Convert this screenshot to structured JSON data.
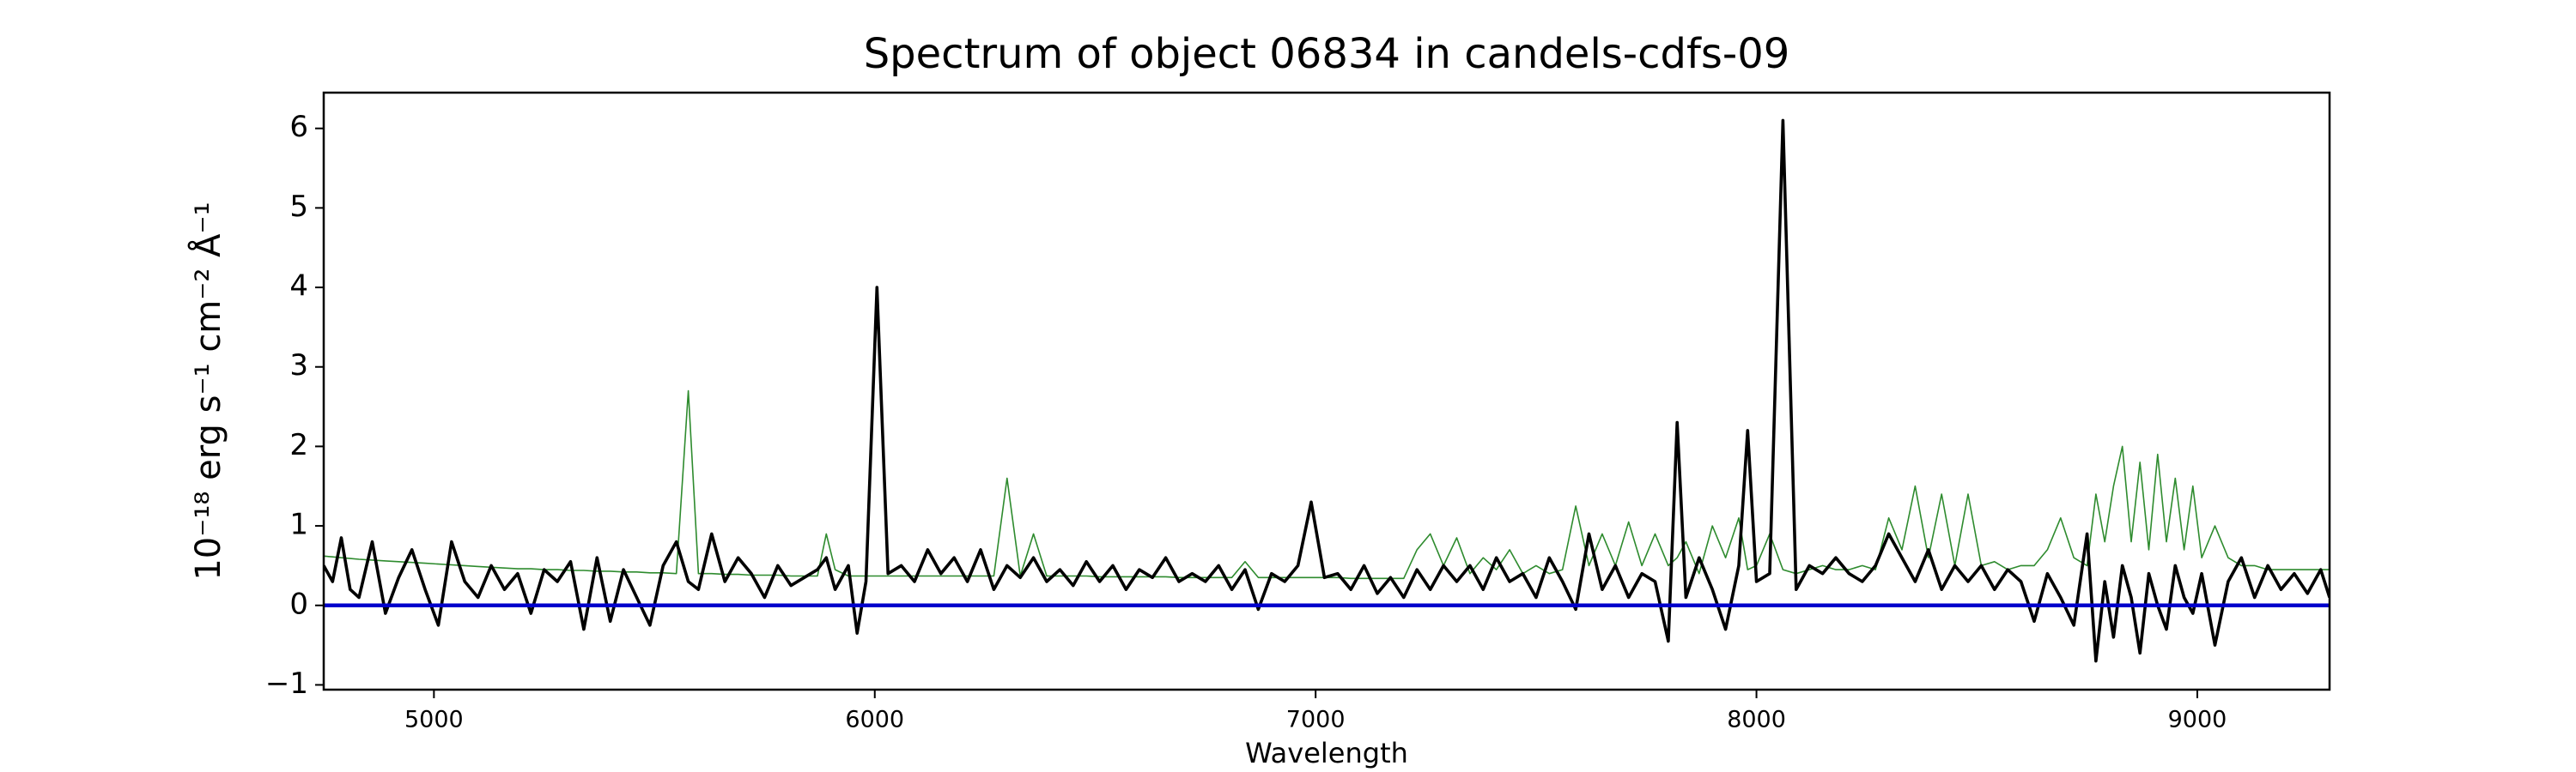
{
  "chart_data": {
    "type": "line",
    "title": "Spectrum of object 06834 in candels-cdfs-09",
    "xlabel": "Wavelength",
    "ylabel": "10⁻¹⁸ erg s⁻¹ cm⁻² Å⁻¹",
    "xlim": [
      4750,
      9300
    ],
    "ylim": [
      -1.06,
      6.45
    ],
    "xticks": [
      5000,
      6000,
      7000,
      8000,
      9000
    ],
    "yticks": [
      {
        "value": -1,
        "label": "−1"
      },
      0,
      1,
      2,
      3,
      4,
      5,
      6
    ],
    "x": [
      4750,
      4770,
      4790,
      4810,
      4830,
      4860,
      4890,
      4920,
      4950,
      4980,
      5010,
      5040,
      5070,
      5100,
      5130,
      5160,
      5190,
      5220,
      5250,
      5280,
      5310,
      5340,
      5370,
      5400,
      5430,
      5460,
      5490,
      5520,
      5550,
      5577,
      5600,
      5630,
      5660,
      5690,
      5720,
      5750,
      5780,
      5810,
      5840,
      5870,
      5890,
      5910,
      5940,
      5960,
      5980,
      6005,
      6030,
      6060,
      6090,
      6120,
      6150,
      6180,
      6210,
      6240,
      6270,
      6300,
      6330,
      6360,
      6390,
      6420,
      6450,
      6480,
      6510,
      6540,
      6570,
      6600,
      6630,
      6660,
      6690,
      6720,
      6750,
      6780,
      6810,
      6840,
      6870,
      6900,
      6930,
      6960,
      6990,
      7020,
      7050,
      7080,
      7110,
      7140,
      7170,
      7200,
      7230,
      7260,
      7290,
      7320,
      7350,
      7380,
      7410,
      7440,
      7470,
      7500,
      7530,
      7560,
      7590,
      7620,
      7650,
      7680,
      7710,
      7740,
      7770,
      7800,
      7820,
      7840,
      7870,
      7900,
      7930,
      7960,
      7980,
      8000,
      8030,
      8060,
      8090,
      8120,
      8150,
      8180,
      8210,
      8240,
      8270,
      8300,
      8330,
      8360,
      8390,
      8420,
      8450,
      8480,
      8510,
      8540,
      8570,
      8600,
      8630,
      8660,
      8690,
      8720,
      8750,
      8770,
      8790,
      8810,
      8830,
      8850,
      8870,
      8890,
      8910,
      8930,
      8950,
      8970,
      8990,
      9010,
      9040,
      9070,
      9100,
      9130,
      9160,
      9190,
      9220,
      9250,
      9280,
      9300
    ],
    "series": [
      {
        "color": "#2e8b2e",
        "values": [
          0.62,
          0.61,
          0.6,
          0.59,
          0.58,
          0.57,
          0.56,
          0.55,
          0.54,
          0.53,
          0.52,
          0.51,
          0.5,
          0.49,
          0.48,
          0.47,
          0.46,
          0.46,
          0.45,
          0.45,
          0.44,
          0.44,
          0.43,
          0.43,
          0.42,
          0.42,
          0.41,
          0.41,
          0.4,
          2.7,
          0.4,
          0.4,
          0.39,
          0.39,
          0.38,
          0.38,
          0.38,
          0.37,
          0.37,
          0.37,
          0.9,
          0.45,
          0.37,
          0.37,
          0.37,
          0.37,
          0.37,
          0.37,
          0.37,
          0.37,
          0.37,
          0.37,
          0.37,
          0.37,
          0.37,
          1.6,
          0.37,
          0.9,
          0.37,
          0.37,
          0.37,
          0.37,
          0.36,
          0.36,
          0.36,
          0.36,
          0.36,
          0.36,
          0.35,
          0.35,
          0.35,
          0.35,
          0.35,
          0.55,
          0.35,
          0.35,
          0.35,
          0.35,
          0.35,
          0.35,
          0.35,
          0.34,
          0.34,
          0.34,
          0.34,
          0.34,
          0.7,
          0.9,
          0.5,
          0.85,
          0.4,
          0.6,
          0.45,
          0.7,
          0.4,
          0.5,
          0.4,
          0.45,
          1.25,
          0.5,
          0.9,
          0.5,
          1.05,
          0.5,
          0.9,
          0.5,
          0.6,
          0.8,
          0.4,
          1.0,
          0.6,
          1.1,
          0.45,
          0.5,
          0.9,
          0.45,
          0.4,
          0.45,
          0.5,
          0.45,
          0.45,
          0.5,
          0.45,
          1.1,
          0.7,
          1.5,
          0.6,
          1.4,
          0.5,
          1.4,
          0.5,
          0.55,
          0.45,
          0.5,
          0.5,
          0.7,
          1.1,
          0.6,
          0.5,
          1.4,
          0.8,
          1.5,
          2.0,
          0.8,
          1.8,
          0.7,
          1.9,
          0.8,
          1.6,
          0.7,
          1.5,
          0.6,
          1.0,
          0.6,
          0.5,
          0.5,
          0.45,
          0.45,
          0.45,
          0.45,
          0.45,
          0.45
        ]
      },
      {
        "color": "#000000",
        "values": [
          0.5,
          0.3,
          0.85,
          0.2,
          0.1,
          0.8,
          -0.1,
          0.35,
          0.7,
          0.2,
          -0.25,
          0.8,
          0.3,
          0.1,
          0.5,
          0.2,
          0.4,
          -0.1,
          0.45,
          0.3,
          0.55,
          -0.3,
          0.6,
          -0.2,
          0.45,
          0.1,
          -0.25,
          0.5,
          0.8,
          0.3,
          0.2,
          0.9,
          0.3,
          0.6,
          0.4,
          0.1,
          0.5,
          0.25,
          0.35,
          0.45,
          0.6,
          0.2,
          0.5,
          -0.35,
          0.3,
          4.0,
          0.4,
          0.5,
          0.3,
          0.7,
          0.4,
          0.6,
          0.3,
          0.7,
          0.2,
          0.5,
          0.35,
          0.6,
          0.3,
          0.45,
          0.25,
          0.55,
          0.3,
          0.5,
          0.2,
          0.45,
          0.35,
          0.6,
          0.3,
          0.4,
          0.3,
          0.5,
          0.2,
          0.45,
          -0.05,
          0.4,
          0.3,
          0.5,
          1.3,
          0.35,
          0.4,
          0.2,
          0.5,
          0.15,
          0.35,
          0.1,
          0.45,
          0.2,
          0.5,
          0.3,
          0.5,
          0.2,
          0.6,
          0.3,
          0.4,
          0.1,
          0.6,
          0.3,
          -0.05,
          0.9,
          0.2,
          0.5,
          0.1,
          0.4,
          0.3,
          -0.45,
          2.3,
          0.1,
          0.6,
          0.2,
          -0.3,
          0.5,
          2.2,
          0.3,
          0.4,
          6.1,
          0.2,
          0.5,
          0.4,
          0.6,
          0.4,
          0.3,
          0.5,
          0.9,
          0.6,
          0.3,
          0.7,
          0.2,
          0.5,
          0.3,
          0.5,
          0.2,
          0.45,
          0.3,
          -0.2,
          0.4,
          0.1,
          -0.25,
          0.9,
          -0.7,
          0.3,
          -0.4,
          0.5,
          0.1,
          -0.6,
          0.4,
          0.0,
          -0.3,
          0.5,
          0.1,
          -0.1,
          0.4,
          -0.5,
          0.3,
          0.6,
          0.1,
          0.5,
          0.2,
          0.4,
          0.15,
          0.45,
          0.1
        ]
      },
      {
        "color": "#0000cc",
        "x": [
          4750,
          9300
        ],
        "values": [
          0,
          0
        ]
      }
    ]
  }
}
